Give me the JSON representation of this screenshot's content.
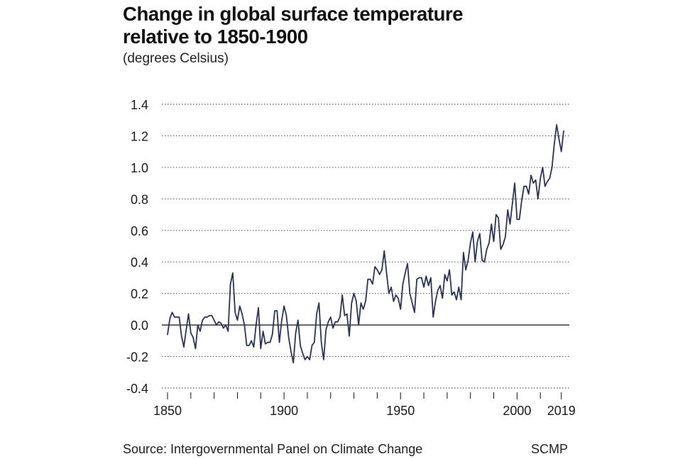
{
  "header": {
    "title_line1": "Change in global surface temperature",
    "title_line2": "relative to 1850-1900",
    "subtitle": "(degrees Celsius)"
  },
  "footer": {
    "source": "Source: Intergovernmental Panel on Climate Change",
    "brand": "SCMP"
  },
  "colors": {
    "line": "#2a3458",
    "grid": "#333333",
    "text": "#1a1a1a"
  },
  "chart_data": {
    "type": "line",
    "title": "Change in global surface temperature relative to 1850-1900",
    "subtitle": "(degrees Celsius)",
    "xlabel": "",
    "ylabel": "",
    "xlim": [
      1850,
      2020
    ],
    "ylim": [
      -0.4,
      1.4
    ],
    "grid": "horizontal dotted",
    "y_ticks": [
      -0.4,
      -0.2,
      0.0,
      0.2,
      0.4,
      0.6,
      0.8,
      1.0,
      1.2,
      1.4
    ],
    "y_tick_labels": [
      "-0.4",
      "-0.2",
      "0.0",
      "0.2",
      "0.4",
      "0.6",
      "0.8",
      "1.0",
      "1.2",
      "1.4"
    ],
    "x_ticks_labeled": [
      1850,
      1900,
      1950,
      2000,
      2019
    ],
    "x_tick_labels": [
      "1850",
      "1900",
      "1950",
      "2000",
      "2019"
    ],
    "x_minor_ticks": [
      1860,
      1870,
      1880,
      1890,
      1910,
      1920,
      1930,
      1940,
      1960,
      1970,
      1980,
      1990,
      2010
    ],
    "series": [
      {
        "x_start": 1850,
        "x_end": 2019,
        "values": [
          -0.06,
          0.04,
          0.08,
          0.05,
          0.05,
          0.05,
          -0.07,
          -0.14,
          -0.03,
          0.07,
          -0.05,
          -0.08,
          -0.15,
          0.0,
          -0.04,
          0.03,
          0.05,
          0.05,
          0.06,
          0.06,
          0.03,
          0.0,
          0.02,
          0.01,
          -0.02,
          0.0,
          -0.04,
          0.26,
          0.33,
          0.08,
          0.03,
          0.12,
          0.07,
          0.0,
          -0.13,
          -0.13,
          -0.1,
          -0.14,
          0.0,
          0.11,
          -0.15,
          -0.04,
          -0.12,
          -0.11,
          -0.11,
          -0.06,
          0.09,
          0.09,
          -0.11,
          0.03,
          0.12,
          0.06,
          -0.08,
          -0.17,
          -0.24,
          -0.05,
          0.03,
          -0.13,
          -0.18,
          -0.22,
          -0.2,
          -0.22,
          -0.13,
          -0.11,
          0.07,
          0.14,
          -0.11,
          -0.22,
          -0.03,
          0.02,
          0.05,
          -0.02,
          0.02,
          0.02,
          0.05,
          0.19,
          0.06,
          0.07,
          -0.07,
          0.14,
          0.2,
          0.15,
          0.0,
          0.14,
          0.1,
          0.15,
          0.29,
          0.29,
          0.26,
          0.37,
          0.35,
          0.32,
          0.35,
          0.47,
          0.33,
          0.2,
          0.24,
          0.15,
          0.19,
          0.17,
          0.1,
          0.26,
          0.33,
          0.39,
          0.2,
          0.14,
          0.08,
          0.29,
          0.3,
          0.3,
          0.24,
          0.31,
          0.25,
          0.3,
          0.05,
          0.15,
          0.22,
          0.25,
          0.17,
          0.32,
          0.28,
          0.35,
          0.19,
          0.21,
          0.16,
          0.24,
          0.16,
          0.46,
          0.35,
          0.41,
          0.52,
          0.59,
          0.4,
          0.53,
          0.58,
          0.41,
          0.4,
          0.48,
          0.52,
          0.64,
          0.53,
          0.7,
          0.68,
          0.48,
          0.51,
          0.56,
          0.73,
          0.64,
          0.77,
          0.9,
          0.67,
          0.67,
          0.79,
          0.88,
          0.88,
          0.83,
          0.95,
          0.9,
          0.92,
          0.8,
          0.93,
          1.0,
          0.88,
          0.91,
          0.93,
          1.0,
          1.15,
          1.27,
          1.18,
          1.1,
          1.23
        ]
      }
    ]
  }
}
